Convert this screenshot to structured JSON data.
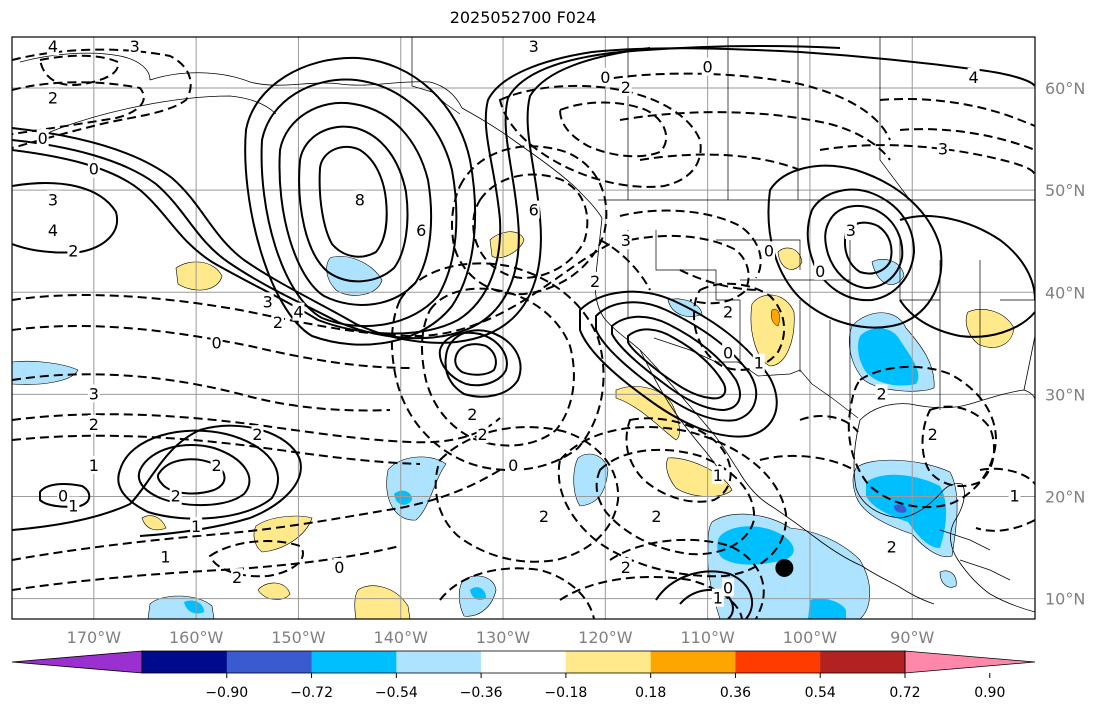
{
  "title": "2025052700 F024",
  "map": {
    "projection": "PlateCarree",
    "lon_range": [
      -178,
      -78
    ],
    "lat_range": [
      8,
      65
    ],
    "lat_ticks": [
      {
        "value": 60,
        "label": "60°N"
      },
      {
        "value": 50,
        "label": "50°N"
      },
      {
        "value": 40,
        "label": "40°N"
      },
      {
        "value": 30,
        "label": "30°N"
      },
      {
        "value": 20,
        "label": "20°N"
      },
      {
        "value": 10,
        "label": "10°N"
      }
    ],
    "lon_ticks": [
      {
        "value": -170,
        "label": "170°W"
      },
      {
        "value": -160,
        "label": "160°W"
      },
      {
        "value": -150,
        "label": "150°W"
      },
      {
        "value": -140,
        "label": "140°W"
      },
      {
        "value": -130,
        "label": "130°W"
      },
      {
        "value": -120,
        "label": "120°W"
      },
      {
        "value": -110,
        "label": "110°W"
      },
      {
        "value": -100,
        "label": "100°W"
      },
      {
        "value": -90,
        "label": "90°W"
      }
    ],
    "gridlines": true,
    "marker": {
      "lon": -102.5,
      "lat": 13,
      "symbol": "black-dot"
    }
  },
  "colorbar": {
    "bins": [
      {
        "color": "#9b30d0"
      },
      {
        "color": "#000a8c"
      },
      {
        "color": "#3a5bd0"
      },
      {
        "color": "#00bfff"
      },
      {
        "color": "#aee3ff"
      },
      {
        "color": "#ffffff"
      },
      {
        "color": "#ffe98a"
      },
      {
        "color": "#ffa500"
      },
      {
        "color": "#ff3c00"
      },
      {
        "color": "#b22222"
      },
      {
        "color": "#ff88aa"
      }
    ],
    "tick_labels": [
      "−0.90",
      "−0.72",
      "−0.54",
      "−0.36",
      "−0.18",
      "0.18",
      "0.36",
      "0.54",
      "0.72",
      "0.90"
    ],
    "extend": "both"
  },
  "contour_labels": [
    {
      "text": "3",
      "lon": -166,
      "lat": 64
    },
    {
      "text": "4",
      "lon": -174,
      "lat": 64
    },
    {
      "text": "3",
      "lon": -127,
      "lat": 64
    },
    {
      "text": "0",
      "lon": -120,
      "lat": 61
    },
    {
      "text": "2",
      "lon": -118,
      "lat": 60
    },
    {
      "text": "0",
      "lon": -110,
      "lat": 62
    },
    {
      "text": "4",
      "lon": -84,
      "lat": 61
    },
    {
      "text": "3",
      "lon": -87,
      "lat": 54
    },
    {
      "text": "2",
      "lon": -174,
      "lat": 59
    },
    {
      "text": "0",
      "lon": -175,
      "lat": 55
    },
    {
      "text": "0",
      "lon": -170,
      "lat": 52
    },
    {
      "text": "3",
      "lon": -174,
      "lat": 49
    },
    {
      "text": "4",
      "lon": -174,
      "lat": 46
    },
    {
      "text": "2",
      "lon": -172,
      "lat": 44
    },
    {
      "text": "8",
      "lon": -144,
      "lat": 49
    },
    {
      "text": "6",
      "lon": -138,
      "lat": 46
    },
    {
      "text": "3",
      "lon": -153,
      "lat": 39
    },
    {
      "text": "4",
      "lon": -150,
      "lat": 38
    },
    {
      "text": "2",
      "lon": -152,
      "lat": 37
    },
    {
      "text": "0",
      "lon": -158,
      "lat": 35
    },
    {
      "text": "3",
      "lon": -170,
      "lat": 30
    },
    {
      "text": "2",
      "lon": -170,
      "lat": 27
    },
    {
      "text": "2",
      "lon": -154,
      "lat": 26
    },
    {
      "text": "1",
      "lon": -170,
      "lat": 23
    },
    {
      "text": "2",
      "lon": -158,
      "lat": 23
    },
    {
      "text": "0",
      "lon": -173,
      "lat": 20
    },
    {
      "text": "1",
      "lon": -172,
      "lat": 19
    },
    {
      "text": "2",
      "lon": -162,
      "lat": 20
    },
    {
      "text": "1",
      "lon": -160,
      "lat": 17
    },
    {
      "text": "1",
      "lon": -163,
      "lat": 14
    },
    {
      "text": "2",
      "lon": -156,
      "lat": 12
    },
    {
      "text": "0",
      "lon": -146,
      "lat": 13
    },
    {
      "text": "2",
      "lon": -132,
      "lat": 26
    },
    {
      "text": "2",
      "lon": -133,
      "lat": 28
    },
    {
      "text": "0",
      "lon": -129,
      "lat": 23
    },
    {
      "text": "2",
      "lon": -126,
      "lat": 18
    },
    {
      "text": "6",
      "lon": -127,
      "lat": 48
    },
    {
      "text": "3",
      "lon": -118,
      "lat": 45
    },
    {
      "text": "2",
      "lon": -121,
      "lat": 41
    },
    {
      "text": "2",
      "lon": -108,
      "lat": 38
    },
    {
      "text": "0",
      "lon": -108,
      "lat": 34
    },
    {
      "text": "1",
      "lon": -105,
      "lat": 33
    },
    {
      "text": "1",
      "lon": -109,
      "lat": 22
    },
    {
      "text": "2",
      "lon": -115,
      "lat": 18
    },
    {
      "text": "2",
      "lon": -118,
      "lat": 13
    },
    {
      "text": "0",
      "lon": -108,
      "lat": 11
    },
    {
      "text": "1",
      "lon": -109,
      "lat": 10
    },
    {
      "text": "3",
      "lon": -96,
      "lat": 46
    },
    {
      "text": "0",
      "lon": -104,
      "lat": 44
    },
    {
      "text": "0",
      "lon": -99,
      "lat": 42
    },
    {
      "text": "2",
      "lon": -93,
      "lat": 30
    },
    {
      "text": "2",
      "lon": -88,
      "lat": 26
    },
    {
      "text": "2",
      "lon": -92,
      "lat": 15
    },
    {
      "text": "1",
      "lon": -80,
      "lat": 20
    }
  ]
}
